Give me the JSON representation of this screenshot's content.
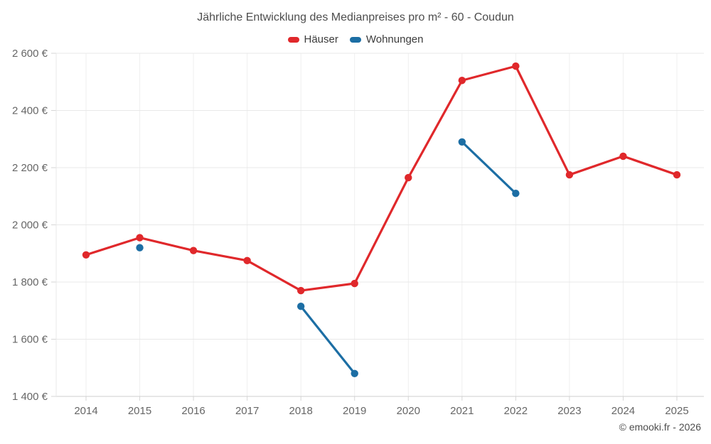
{
  "title": "Jährliche Entwicklung des Medianpreises pro m² - 60 - Coudun",
  "legend": [
    {
      "label": "Häuser",
      "color": "#e0282b"
    },
    {
      "label": "Wohnungen",
      "color": "#1c6ea4"
    }
  ],
  "copyright": "© emooki.fr - 2026",
  "chart_data": {
    "type": "line",
    "title": "Jährliche Entwicklung des Medianpreises pro m² - 60 - Coudun",
    "x": [
      "2014",
      "2015",
      "2016",
      "2017",
      "2018",
      "2019",
      "2020",
      "2021",
      "2022",
      "2023",
      "2024",
      "2025"
    ],
    "series": [
      {
        "name": "Häuser",
        "slug": "haeuser",
        "color": "#e0282b",
        "values": [
          1895,
          1955,
          1910,
          1875,
          1770,
          1795,
          2165,
          2505,
          2555,
          2175,
          2240,
          2175
        ]
      },
      {
        "name": "Wohnungen",
        "slug": "wohnungen",
        "color": "#1c6ea4",
        "values": [
          null,
          1920,
          null,
          null,
          1715,
          1480,
          null,
          2290,
          2110,
          null,
          null,
          null
        ]
      }
    ],
    "ylim": [
      1400,
      2600
    ],
    "ytick_step": 200,
    "yticks": [
      {
        "value": 2600,
        "label": "2 600 €"
      },
      {
        "value": 2400,
        "label": "2 400 €"
      },
      {
        "value": 2200,
        "label": "2 200 €"
      },
      {
        "value": 2000,
        "label": "2 000 €"
      },
      {
        "value": 1800,
        "label": "1 800 €"
      },
      {
        "value": 1600,
        "label": "1 600 €"
      },
      {
        "value": 1400,
        "label": "1 400 €"
      }
    ],
    "grid": true,
    "legend_position": "top",
    "currency": "€"
  }
}
